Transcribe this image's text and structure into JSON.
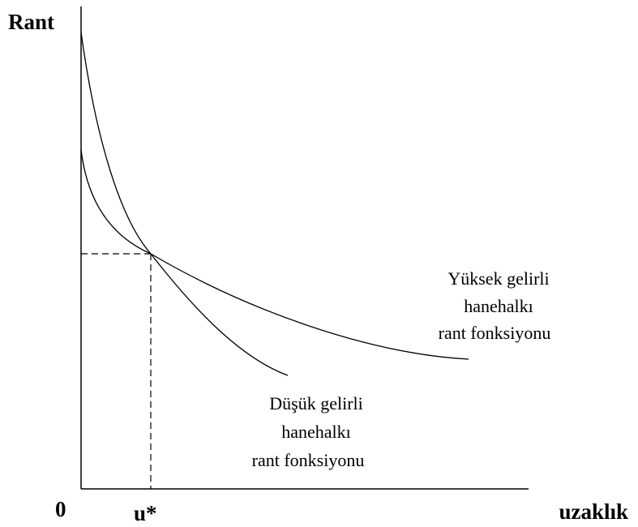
{
  "axes": {
    "y_label": "Rant",
    "x_label": "uzaklık",
    "origin": "0",
    "intersection": "u*"
  },
  "curves": [
    {
      "label": [
        "Yüksek gelirli",
        "hanehalkı",
        "rant fonksiyonu"
      ]
    },
    {
      "label": [
        "Düşük gelirli",
        "hanehalkı",
        "rant fonksiyonu"
      ]
    }
  ]
}
